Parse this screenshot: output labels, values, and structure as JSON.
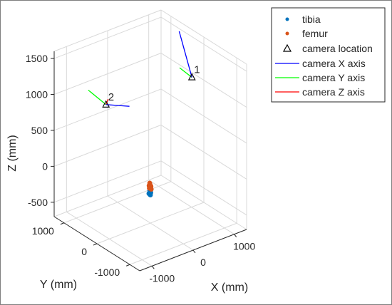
{
  "chart_data": {
    "type": "scatter3d",
    "xlabel": "X (mm)",
    "ylabel": "Y (mm)",
    "zlabel": "Z (mm)",
    "xlim": [
      -1300,
      1300
    ],
    "ylim": [
      -1300,
      1300
    ],
    "zlim": [
      -700,
      1600
    ],
    "xticks": [
      {
        "value": -1000,
        "label": "-1000"
      },
      {
        "value": 0,
        "label": "0"
      },
      {
        "value": 1000,
        "label": "1000"
      }
    ],
    "yticks": [
      {
        "value": -1000,
        "label": "-1000"
      },
      {
        "value": 0,
        "label": "0"
      },
      {
        "value": 1000,
        "label": "1000"
      }
    ],
    "zticks": [
      {
        "value": -500,
        "label": "-500"
      },
      {
        "value": 0,
        "label": "0"
      },
      {
        "value": 500,
        "label": "500"
      },
      {
        "value": 1000,
        "label": "1000"
      },
      {
        "value": 1500,
        "label": "1500"
      }
    ],
    "grid": true,
    "legend_position": "top-right",
    "series": [
      {
        "name": "tibia",
        "kind": "points",
        "color": "#0072BD",
        "points": [
          [
            -20,
            20,
            -290
          ],
          [
            -5,
            10,
            -305
          ],
          [
            10,
            0,
            -280
          ],
          [
            -25,
            -10,
            -270
          ],
          [
            5,
            25,
            -255
          ],
          [
            -15,
            -20,
            -300
          ],
          [
            15,
            15,
            -245
          ],
          [
            0,
            -5,
            -265
          ]
        ]
      },
      {
        "name": "femur",
        "kind": "points",
        "color": "#D95319",
        "points": [
          [
            -20,
            15,
            -180
          ],
          [
            -5,
            5,
            -160
          ],
          [
            10,
            -5,
            -190
          ],
          [
            -15,
            -15,
            -170
          ],
          [
            0,
            20,
            -150
          ],
          [
            15,
            10,
            -200
          ],
          [
            -25,
            0,
            -210
          ],
          [
            5,
            -20,
            -225
          ],
          [
            -10,
            10,
            -215
          ]
        ]
      },
      {
        "name": "camera location",
        "kind": "marker",
        "marker": "triangle",
        "color": "#000000",
        "points": [
          [
            1050,
            50,
            1080
          ],
          [
            -1000,
            100,
            1140
          ]
        ],
        "labels": [
          "1",
          "2"
        ]
      },
      {
        "name": "camera X axis",
        "kind": "segments",
        "color": "#0000FF"
      },
      {
        "name": "camera Y axis",
        "kind": "segments",
        "color": "#00FF00"
      },
      {
        "name": "camera Z axis",
        "kind": "segments",
        "color": "#FF0000"
      }
    ],
    "cameras": [
      {
        "label": "1",
        "origin": [
          1050,
          50,
          1080
        ],
        "x_axis": [
          50,
          450,
          500
        ],
        "y_axis": [
          -300,
          0,
          200
        ],
        "z_axis": [
          -50,
          -40,
          60
        ]
      },
      {
        "label": "2",
        "origin": [
          -1000,
          100,
          1140
        ],
        "x_axis": [
          450,
          -150,
          -80
        ],
        "y_axis": [
          -350,
          100,
          250
        ],
        "z_axis": [
          60,
          10,
          60
        ]
      }
    ]
  }
}
